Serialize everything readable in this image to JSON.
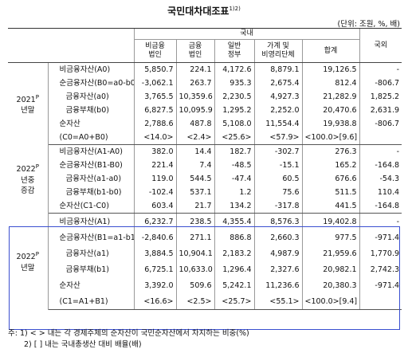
{
  "title": "국민대차대조표",
  "title_sup": "1)2)",
  "unit": "(단위: 조원, %, 배)",
  "header": {
    "domestic": "국내",
    "cols": [
      "비금융\n법인",
      "금융\n법인",
      "일반\n정부",
      "가계 및\n비영리단체",
      "합계"
    ],
    "foreign": "국외"
  },
  "sections": [
    {
      "group": [
        "2021P",
        "년말"
      ],
      "rows": [
        {
          "label": "비금융자산(A0)",
          "indent": 0,
          "values": [
            "5,850.7",
            "224.1",
            "4,172.6",
            "8,879.1",
            "19,126.5",
            "-"
          ]
        },
        {
          "label": "순금융자산(B0=a0-b0)",
          "indent": 0,
          "values": [
            "-3,062.1",
            "263.7",
            "935.3",
            "2,675.4",
            "812.4",
            "-806.7"
          ]
        },
        {
          "label": "금융자산(a0)",
          "indent": 1,
          "values": [
            "3,765.5",
            "10,359.6",
            "2,230.5",
            "4,927.3",
            "21,282.9",
            "1,825.2"
          ]
        },
        {
          "label": "금융부채(b0)",
          "indent": 1,
          "values": [
            "6,827.5",
            "10,095.9",
            "1,295.2",
            "2,252.0",
            "20,470.6",
            "2,631.9"
          ]
        },
        {
          "label": "순자산",
          "indent": 0,
          "values": [
            "2,788.6",
            "487.8",
            "5,108.0",
            "11,554.4",
            "19,938.8",
            "-806.7"
          ]
        },
        {
          "label": "(C0=A0+B0)",
          "indent": 0,
          "values": [
            "<14.0>",
            "<2.4>",
            "<25.6>",
            "<57.9>",
            "<100.0>[9.6]",
            ""
          ]
        }
      ]
    },
    {
      "group": [
        "2022P",
        "년중",
        "증감"
      ],
      "rows": [
        {
          "label": "비금융자산(A1-A0)",
          "indent": 0,
          "values": [
            "382.0",
            "14.4",
            "182.7",
            "-302.7",
            "276.3",
            "-"
          ]
        },
        {
          "label": "순금융자산(B1-B0)",
          "indent": 0,
          "values": [
            "221.4",
            "7.4",
            "-48.5",
            "-15.1",
            "165.2",
            "-164.8"
          ]
        },
        {
          "label": "금융자산(a1-a0)",
          "indent": 1,
          "values": [
            "119.0",
            "544.5",
            "-47.4",
            "60.5",
            "676.6",
            "-54.3"
          ]
        },
        {
          "label": "금융부채(b1-b0)",
          "indent": 1,
          "values": [
            "-102.4",
            "537.1",
            "1.2",
            "75.6",
            "511.5",
            "110.4"
          ]
        },
        {
          "label": "순자산(C1-C0)",
          "indent": 0,
          "values": [
            "603.4",
            "21.7",
            "134.2",
            "-317.8",
            "441.5",
            "-164.8"
          ]
        }
      ]
    },
    {
      "group": [
        "2022P",
        "년말"
      ],
      "rows": [
        {
          "label": "비금융자산(A1)",
          "indent": 0,
          "values": [
            "6,232.7",
            "238.5",
            "4,355.4",
            "8,576.3",
            "19,402.8",
            "-"
          ]
        },
        {
          "label": "순금융자산(B1=a1-b1)",
          "indent": 0,
          "values": [
            "-2,840.6",
            "271.1",
            "886.8",
            "2,660.3",
            "977.5",
            "-971.4"
          ]
        },
        {
          "label": "금융자산(a1)",
          "indent": 1,
          "values": [
            "3,884.5",
            "10,904.1",
            "2,183.2",
            "4,987.9",
            "21,959.6",
            "1,770.9"
          ]
        },
        {
          "label": "금융부채(b1)",
          "indent": 1,
          "values": [
            "6,725.1",
            "10,633.0",
            "1,296.4",
            "2,327.6",
            "20,982.1",
            "2,742.3"
          ]
        },
        {
          "label": "순자산",
          "indent": 0,
          "values": [
            "3,392.0",
            "509.6",
            "5,242.1",
            "11,236.6",
            "20,380.3",
            "-971.4"
          ]
        },
        {
          "label": "(C1=A1+B1)",
          "indent": 0,
          "values": [
            "<16.6>",
            "<2.5>",
            "<25.7>",
            "<55.1>",
            "<100.0>[9.4]",
            ""
          ]
        }
      ]
    }
  ],
  "notes": [
    "주: 1) < > 내는 각 경제주체의 순자산이 국민순자산에서 차지하는 비중(%)",
    "2) [ ] 내는 국내총생산 대비 배율(배)"
  ]
}
